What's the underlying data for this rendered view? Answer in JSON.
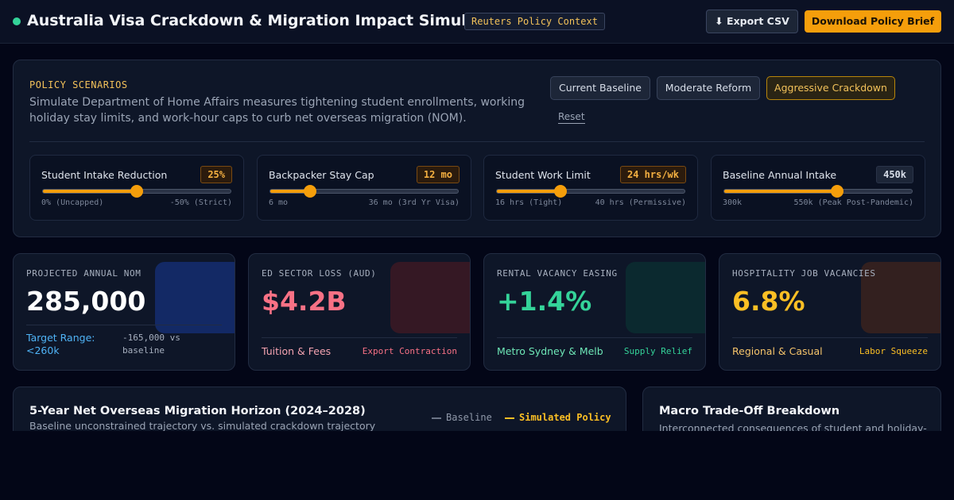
{
  "header": {
    "title": "Australia Visa Crackdown & Migration Impact Simulator",
    "context_badge": "Reuters Policy Context",
    "export_label": "⬇ Export CSV",
    "brief_label": "Download Policy Brief",
    "status_color": "#34d399"
  },
  "scenarios": {
    "eyebrow": "POLICY SCENARIOS",
    "description": "Simulate Department of Home Affairs measures tightening student enrollments, working holiday stay limits, and work-hour caps to curb net overseas migration (NOM).",
    "buttons": [
      "Current Baseline",
      "Moderate Reform",
      "Aggressive Crackdown"
    ],
    "active": "Aggressive Crackdown",
    "reset_label": "Reset"
  },
  "sliders": [
    {
      "label": "Student Intake Reduction",
      "value": "25%",
      "min_label": "0% (Uncapped)",
      "max_label": "-50% (Strict)",
      "position": 0.5
    },
    {
      "label": "Backpacker Stay Cap",
      "value": "12 mo",
      "min_label": "6 mo",
      "max_label": "36 mo (3rd Yr Visa)",
      "position": 0.21
    },
    {
      "label": "Student Work Limit",
      "value": "24 hrs/wk",
      "min_label": "16 hrs (Tight)",
      "max_label": "40 hrs (Permissive)",
      "position": 0.34
    },
    {
      "label": "Baseline Annual Intake",
      "value": "450k",
      "min_label": "300k",
      "max_label": "550k (Peak Post-Pandemic)",
      "position": 0.6
    }
  ],
  "kpis": [
    {
      "label": "PROJECTED ANNUAL NOM",
      "value": "285,000",
      "foot": "Target Range: <260k",
      "tag": "-165,000 vs baseline",
      "value_color": "#ffffff",
      "foot_color": "#4fb3f6",
      "tag_color": "#a7b0bf",
      "glow": "#1d4ed8"
    },
    {
      "label": "ED SECTOR LOSS (AUD)",
      "value": "$4.2B",
      "foot": "Tuition & Fees",
      "tag": "Export Contraction",
      "value_color": "#f87185",
      "foot_color": "#f4a3b0",
      "tag_color": "#f87185",
      "glow": "#7f1d1d"
    },
    {
      "label": "RENTAL VACANCY EASING",
      "value": "+1.4%",
      "foot": "Metro Sydney & Melb",
      "tag": "Supply Relief",
      "value_color": "#34d399",
      "foot_color": "#6ee7b7",
      "tag_color": "#34d399",
      "glow": "#064e3b"
    },
    {
      "label": "HOSPITALITY JOB VACANCIES",
      "value": "6.8%",
      "foot": "Regional & Casual",
      "tag": "Labor Squeeze",
      "value_color": "#fbbf24",
      "foot_color": "#f5c46b",
      "tag_color": "#fbbf24",
      "glow": "#78350f"
    }
  ],
  "horizon": {
    "title": "5-Year Net Overseas Migration Horizon (2024–2028)",
    "subtitle": "Baseline unconstrained trajectory vs. simulated crackdown trajectory",
    "legend": [
      {
        "label": "Baseline",
        "color": "#6b7486"
      },
      {
        "label": "Simulated Policy",
        "color": "#fbbf24"
      }
    ]
  },
  "tradeoff": {
    "title": "Macro Trade-Off Breakdown",
    "subtitle": "Interconnected consequences of student and holiday-"
  }
}
